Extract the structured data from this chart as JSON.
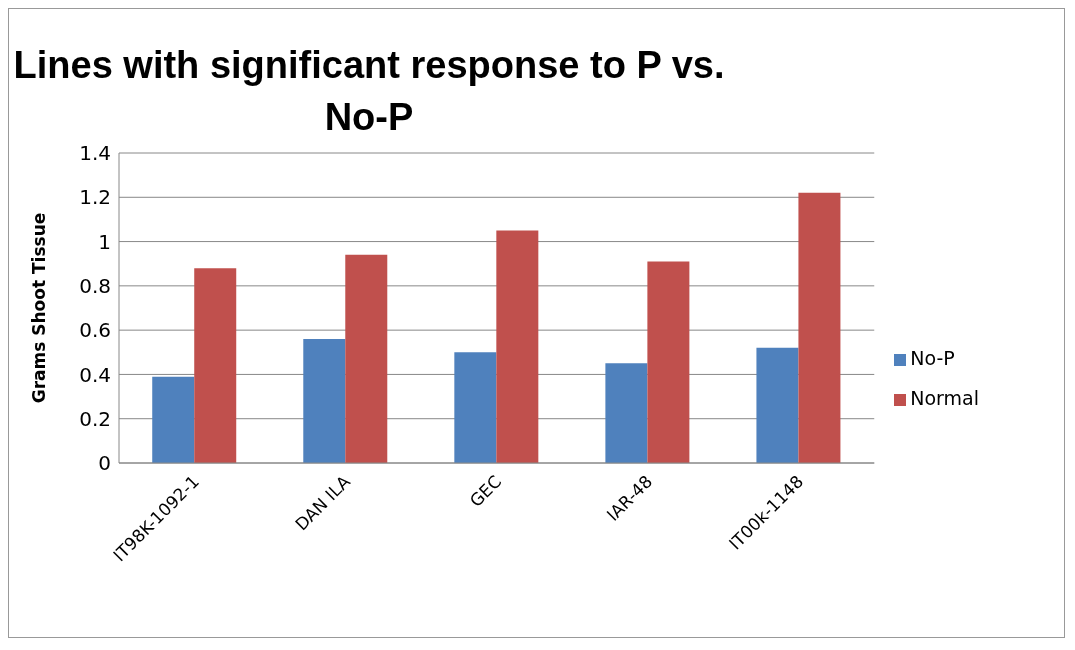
{
  "chart_data": {
    "type": "bar",
    "title": "Lines with significant response to P vs. No-P",
    "ylabel": "Grams Shoot Tissue",
    "categories": [
      "IT98K-1092-1",
      "DAN ILA",
      "GEC",
      "IAR-48",
      "IT00k-1148"
    ],
    "series": [
      {
        "name": "No-P",
        "color": "#4f81bd",
        "values": [
          0.39,
          0.56,
          0.5,
          0.45,
          0.52
        ]
      },
      {
        "name": "Normal",
        "color": "#c0504d",
        "values": [
          0.88,
          0.94,
          1.05,
          0.91,
          1.22
        ]
      }
    ],
    "ylim": [
      0,
      1.4
    ],
    "yticks": [
      0,
      0.2,
      0.4,
      0.6,
      0.8,
      1,
      1.2,
      1.4
    ],
    "grid": "y",
    "legend": "right"
  }
}
